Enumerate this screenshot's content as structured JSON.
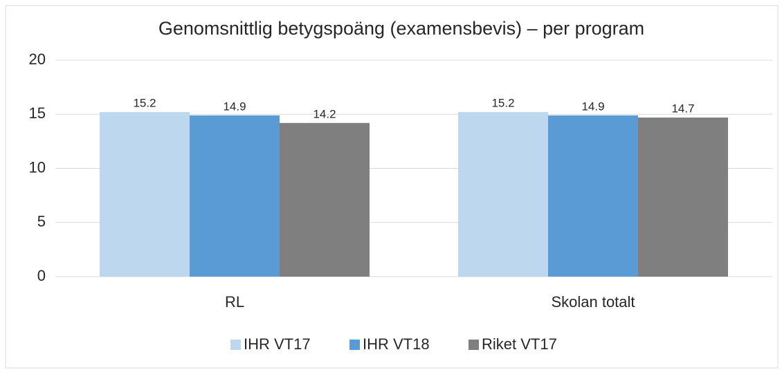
{
  "chart_data": {
    "type": "bar",
    "title": "Genomsnittlig betygspoäng (examensbevis) – per program",
    "categories": [
      "RL",
      "Skolan totalt"
    ],
    "series": [
      {
        "name": "IHR VT17",
        "color": "#bdd7ee",
        "values": [
          15.2,
          15.2
        ]
      },
      {
        "name": "IHR VT18",
        "color": "#5b9bd5",
        "values": [
          14.9,
          14.9
        ]
      },
      {
        "name": "Riket VT17",
        "color": "#7f7f7f",
        "values": [
          14.2,
          14.7
        ]
      }
    ],
    "ylim": [
      0,
      20
    ],
    "yticks": [
      0,
      5,
      10,
      15,
      20
    ],
    "grid": true,
    "legend": "bottom"
  }
}
